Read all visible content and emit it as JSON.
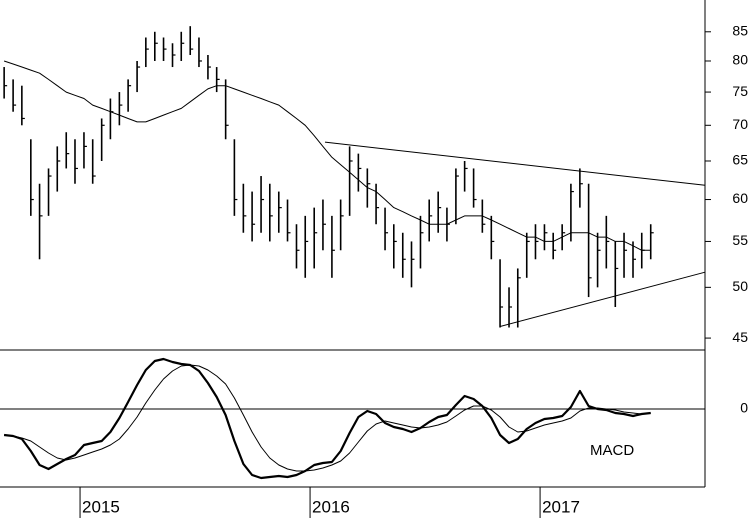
{
  "chart_data": {
    "type": "ohlc",
    "log": true,
    "bar_color": "#000000",
    "ma_color": "#000000",
    "xlim": [
      2014.652,
      2017.717
    ],
    "xticks": [
      2015,
      2016,
      2017
    ],
    "ylim": [
      43.9,
      90.8
    ],
    "yticks": [
      45,
      50,
      55,
      60,
      65,
      70,
      75,
      80,
      85
    ],
    "x": [
      2014.67,
      2014.709,
      2014.747,
      2014.786,
      2014.824,
      2014.863,
      2014.901,
      2014.94,
      2014.978,
      2015.017,
      2015.055,
      2015.094,
      2015.132,
      2015.171,
      2015.209,
      2015.248,
      2015.286,
      2015.325,
      2015.363,
      2015.402,
      2015.44,
      2015.479,
      2015.517,
      2015.556,
      2015.594,
      2015.633,
      2015.671,
      2015.71,
      2015.748,
      2015.787,
      2015.825,
      2015.864,
      2015.902,
      2015.941,
      2015.979,
      2016.018,
      2016.056,
      2016.095,
      2016.133,
      2016.172,
      2016.21,
      2016.249,
      2016.287,
      2016.326,
      2016.364,
      2016.403,
      2016.441,
      2016.48,
      2016.518,
      2016.557,
      2016.595,
      2016.634,
      2016.672,
      2016.711,
      2016.749,
      2016.788,
      2016.826,
      2016.865,
      2016.903,
      2016.942,
      2016.98,
      2017.019,
      2017.057,
      2017.096,
      2017.134,
      2017.173,
      2017.211,
      2017.25,
      2017.288,
      2017.327,
      2017.365,
      2017.404,
      2017.442,
      2017.481
    ],
    "high": [
      79,
      77,
      76,
      68,
      62,
      64,
      67,
      69,
      68,
      69,
      68,
      71,
      74,
      75,
      77,
      80,
      84,
      85,
      84,
      83,
      85,
      86,
      84,
      81,
      79,
      77,
      68,
      62,
      61,
      63,
      62,
      61,
      60,
      57,
      58,
      59,
      60,
      58,
      60,
      67,
      66,
      64,
      62,
      59,
      57,
      56,
      55,
      58,
      60,
      61,
      59,
      64,
      65,
      64,
      60,
      58,
      53,
      50,
      52,
      56,
      57,
      57,
      56,
      57,
      62,
      64,
      62,
      56,
      58,
      55,
      56,
      55,
      56,
      57
    ],
    "low": [
      74,
      72,
      70,
      58,
      53,
      58,
      61,
      64,
      62,
      64,
      62,
      65,
      68,
      70,
      72,
      75,
      79,
      80,
      80,
      79,
      80,
      81,
      79,
      77,
      75,
      68,
      58,
      56,
      55,
      56,
      55,
      56,
      55,
      52,
      51,
      52,
      54,
      51,
      54,
      58,
      61,
      59,
      57,
      54,
      52,
      51,
      50,
      52,
      55,
      56,
      55,
      57,
      61,
      59,
      56,
      53,
      46,
      46,
      46,
      51,
      53,
      54,
      53,
      54,
      55,
      59,
      49,
      50,
      52,
      48,
      51,
      51,
      52,
      53
    ],
    "close": [
      76,
      73,
      71,
      60,
      58,
      63,
      65,
      66,
      64,
      67,
      63,
      70,
      72,
      73,
      76,
      79,
      82,
      83,
      82,
      81,
      83,
      82,
      80,
      79,
      77,
      70,
      60,
      58,
      57,
      60,
      58,
      59,
      56,
      54,
      55,
      56,
      57,
      54,
      58,
      65,
      64,
      62,
      59,
      56,
      55,
      53,
      53,
      56,
      58,
      59,
      57,
      63,
      64,
      60,
      57,
      55,
      48,
      48,
      51,
      55,
      55,
      56,
      54,
      56,
      61,
      62,
      51,
      54,
      55,
      52,
      54,
      53,
      54,
      56
    ],
    "ma": [
      80,
      79.5,
      79,
      78.5,
      78,
      77,
      76,
      75,
      74.5,
      74,
      73,
      72.5,
      72,
      71.5,
      71,
      70.5,
      70.5,
      71,
      71.5,
      72,
      72.5,
      73.5,
      74.5,
      75.5,
      76,
      76,
      75.5,
      75,
      74.5,
      74,
      73.5,
      73,
      72,
      71,
      70,
      68.5,
      67,
      65.5,
      64.5,
      63.5,
      62.5,
      61.5,
      61,
      60,
      59,
      58.5,
      58,
      57.5,
      57,
      57,
      57,
      57.5,
      58,
      58,
      58,
      57.5,
      57,
      56.5,
      56,
      55.5,
      55.5,
      55,
      55,
      55.5,
      56,
      56,
      56,
      55.5,
      55.5,
      55,
      55,
      54.5,
      54,
      54
    ],
    "trendlines": [
      {
        "x": [
          2016.065,
          2017.717
        ],
        "y": [
          67.6,
          61.8
        ]
      },
      {
        "x": [
          2016.826,
          2017.717
        ],
        "y": [
          46.1,
          51.6
        ]
      }
    ],
    "macd": {
      "type": "line",
      "label": "MACD",
      "ylim": [
        -7.8,
        5.9
      ],
      "yticks": [
        0
      ],
      "series": [
        {
          "color": "#000000",
          "width": 2.2,
          "values": [
            -2.6,
            -2.7,
            -3.0,
            -4.2,
            -5.6,
            -6.0,
            -5.5,
            -5.0,
            -4.6,
            -3.6,
            -3.4,
            -3.2,
            -2.3,
            -0.9,
            0.7,
            2.4,
            3.9,
            4.8,
            5.0,
            4.7,
            4.5,
            4.4,
            3.8,
            2.6,
            1.2,
            -0.6,
            -3.2,
            -5.5,
            -6.6,
            -6.9,
            -6.8,
            -6.7,
            -6.8,
            -6.6,
            -6.2,
            -5.6,
            -5.4,
            -5.3,
            -4.2,
            -2.4,
            -0.8,
            -0.2,
            -0.5,
            -1.4,
            -1.8,
            -2.0,
            -2.3,
            -1.9,
            -1.3,
            -0.8,
            -0.6,
            0.4,
            1.3,
            1.0,
            0.3,
            -0.9,
            -2.6,
            -3.4,
            -3.0,
            -2.0,
            -1.4,
            -1.0,
            -0.9,
            -0.7,
            0.2,
            1.8,
            0.3,
            0.0,
            -0.1,
            -0.4,
            -0.5,
            -0.7,
            -0.5,
            -0.4
          ]
        },
        {
          "color": "#000000",
          "width": 1,
          "values": [
            -2.6,
            -2.7,
            -2.9,
            -3.2,
            -3.8,
            -4.4,
            -4.9,
            -5.1,
            -4.9,
            -4.6,
            -4.3,
            -4.0,
            -3.6,
            -3.0,
            -2.0,
            -0.8,
            0.6,
            1.9,
            3.0,
            3.8,
            4.3,
            4.4,
            4.3,
            3.9,
            3.3,
            2.5,
            1.1,
            -0.6,
            -2.3,
            -3.8,
            -4.9,
            -5.6,
            -6.0,
            -6.2,
            -6.2,
            -6.1,
            -5.9,
            -5.6,
            -5.2,
            -4.4,
            -3.3,
            -2.2,
            -1.5,
            -1.2,
            -1.4,
            -1.6,
            -1.8,
            -1.9,
            -1.8,
            -1.6,
            -1.3,
            -0.7,
            -0.1,
            0.3,
            0.3,
            -0.1,
            -0.8,
            -1.8,
            -2.3,
            -2.2,
            -1.9,
            -1.6,
            -1.4,
            -1.2,
            -0.9,
            -0.2,
            0.1,
            0.1,
            0.0,
            -0.1,
            -0.3,
            -0.4,
            -0.5,
            -0.4
          ]
        }
      ]
    }
  }
}
